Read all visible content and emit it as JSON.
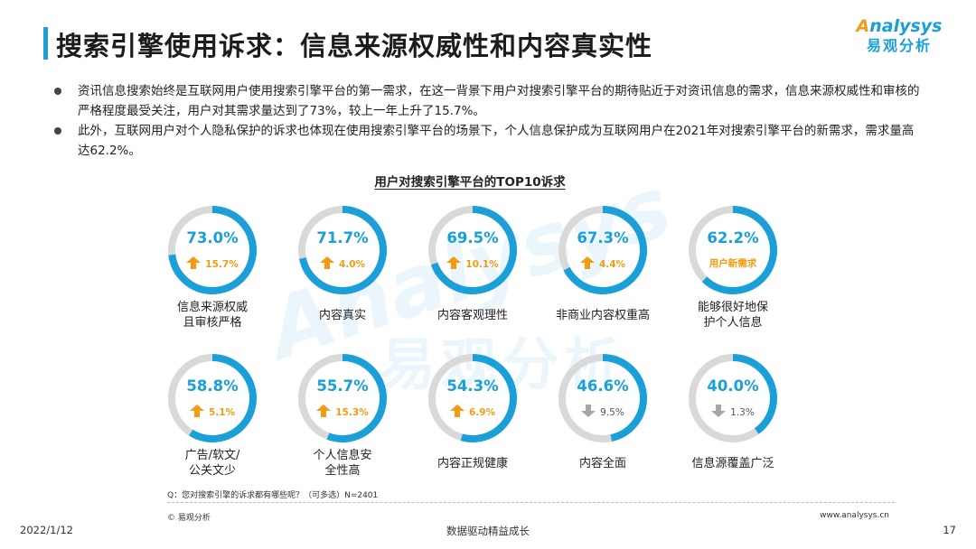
{
  "header": {
    "title": "搜索引擎使用诉求：信息来源权威性和内容真实性",
    "logo_en": "nalysys",
    "logo_en_initial": "A",
    "logo_cn": "易观分析"
  },
  "bullets": [
    "资讯信息搜索始终是互联网用户使用搜索引擎平台的第一需求，在这一背景下用户对搜索引擎平台的期待贴近于对资讯信息的需求，信息来源权威性和审核的严格程度最受关注，用户对其需求量达到了73%，较上一年上升了15.7%。",
    "此外，互联网用户对个人隐私保护的诉求也体现在使用搜索引擎平台的场景下，个人信息保护成为互联网用户在2021年对搜索引擎平台的新需求，需求量高达62.2%。"
  ],
  "watermark": {
    "en": "Analysys",
    "cn": "易观分析"
  },
  "chart_data": {
    "type": "donut-grid",
    "title": "用户对搜索引擎平台的TOP10诉求",
    "unit": "%",
    "items": [
      {
        "label": "信息来源权威且审核严格",
        "label_lines": [
          "信息来源权威",
          "且审核严格"
        ],
        "value": 73.0,
        "value_text": "73.0%",
        "change": 15.7,
        "change_text": "15.7%",
        "trend": "up"
      },
      {
        "label": "内容真实",
        "label_lines": [
          "内容真实"
        ],
        "value": 71.7,
        "value_text": "71.7%",
        "change": 4.0,
        "change_text": "4.0%",
        "trend": "up"
      },
      {
        "label": "内容客观理性",
        "label_lines": [
          "内容客观理性"
        ],
        "value": 69.5,
        "value_text": "69.5%",
        "change": 10.1,
        "change_text": "10.1%",
        "trend": "up"
      },
      {
        "label": "非商业内容权重高",
        "label_lines": [
          "非商业内容权重高"
        ],
        "value": 67.3,
        "value_text": "67.3%",
        "change": 4.4,
        "change_text": "4.4%",
        "trend": "up"
      },
      {
        "label": "能够很好地保护个人信息",
        "label_lines": [
          "能够很好地保",
          "护个人信息"
        ],
        "value": 62.2,
        "value_text": "62.2%",
        "change": null,
        "change_text": "用户新需求",
        "trend": "new"
      },
      {
        "label": "广告/软文/公关文少",
        "label_lines": [
          "广告/软文/",
          "公关文少"
        ],
        "value": 58.8,
        "value_text": "58.8%",
        "change": 5.1,
        "change_text": "5.1%",
        "trend": "up"
      },
      {
        "label": "个人信息安全性高",
        "label_lines": [
          "个人信息安",
          "全性高"
        ],
        "value": 55.7,
        "value_text": "55.7%",
        "change": 15.3,
        "change_text": "15.3%",
        "trend": "up"
      },
      {
        "label": "内容正规健康",
        "label_lines": [
          "内容正规健康"
        ],
        "value": 54.3,
        "value_text": "54.3%",
        "change": 6.9,
        "change_text": "6.9%",
        "trend": "up"
      },
      {
        "label": "内容全面",
        "label_lines": [
          "内容全面"
        ],
        "value": 46.6,
        "value_text": "46.6%",
        "change": -9.5,
        "change_text": "9.5%",
        "trend": "down"
      },
      {
        "label": "信息源覆盖广泛",
        "label_lines": [
          "信息源覆盖广泛"
        ],
        "value": 40.0,
        "value_text": "40.0%",
        "change": -1.3,
        "change_text": "1.3%",
        "trend": "down"
      }
    ],
    "colors": {
      "ring": "#1a9fd9",
      "track": "#d9d9d9",
      "up": "#f39c12",
      "down": "#a6a6a6"
    }
  },
  "footer": {
    "question": "Q：您对搜索引擎的诉求都有哪些呢？（可多选）N=2401",
    "source": "© 易观分析",
    "website": "www.analysys.cn",
    "date": "2022/1/12",
    "slogan": "数据驱动精益成长",
    "page": "17"
  }
}
